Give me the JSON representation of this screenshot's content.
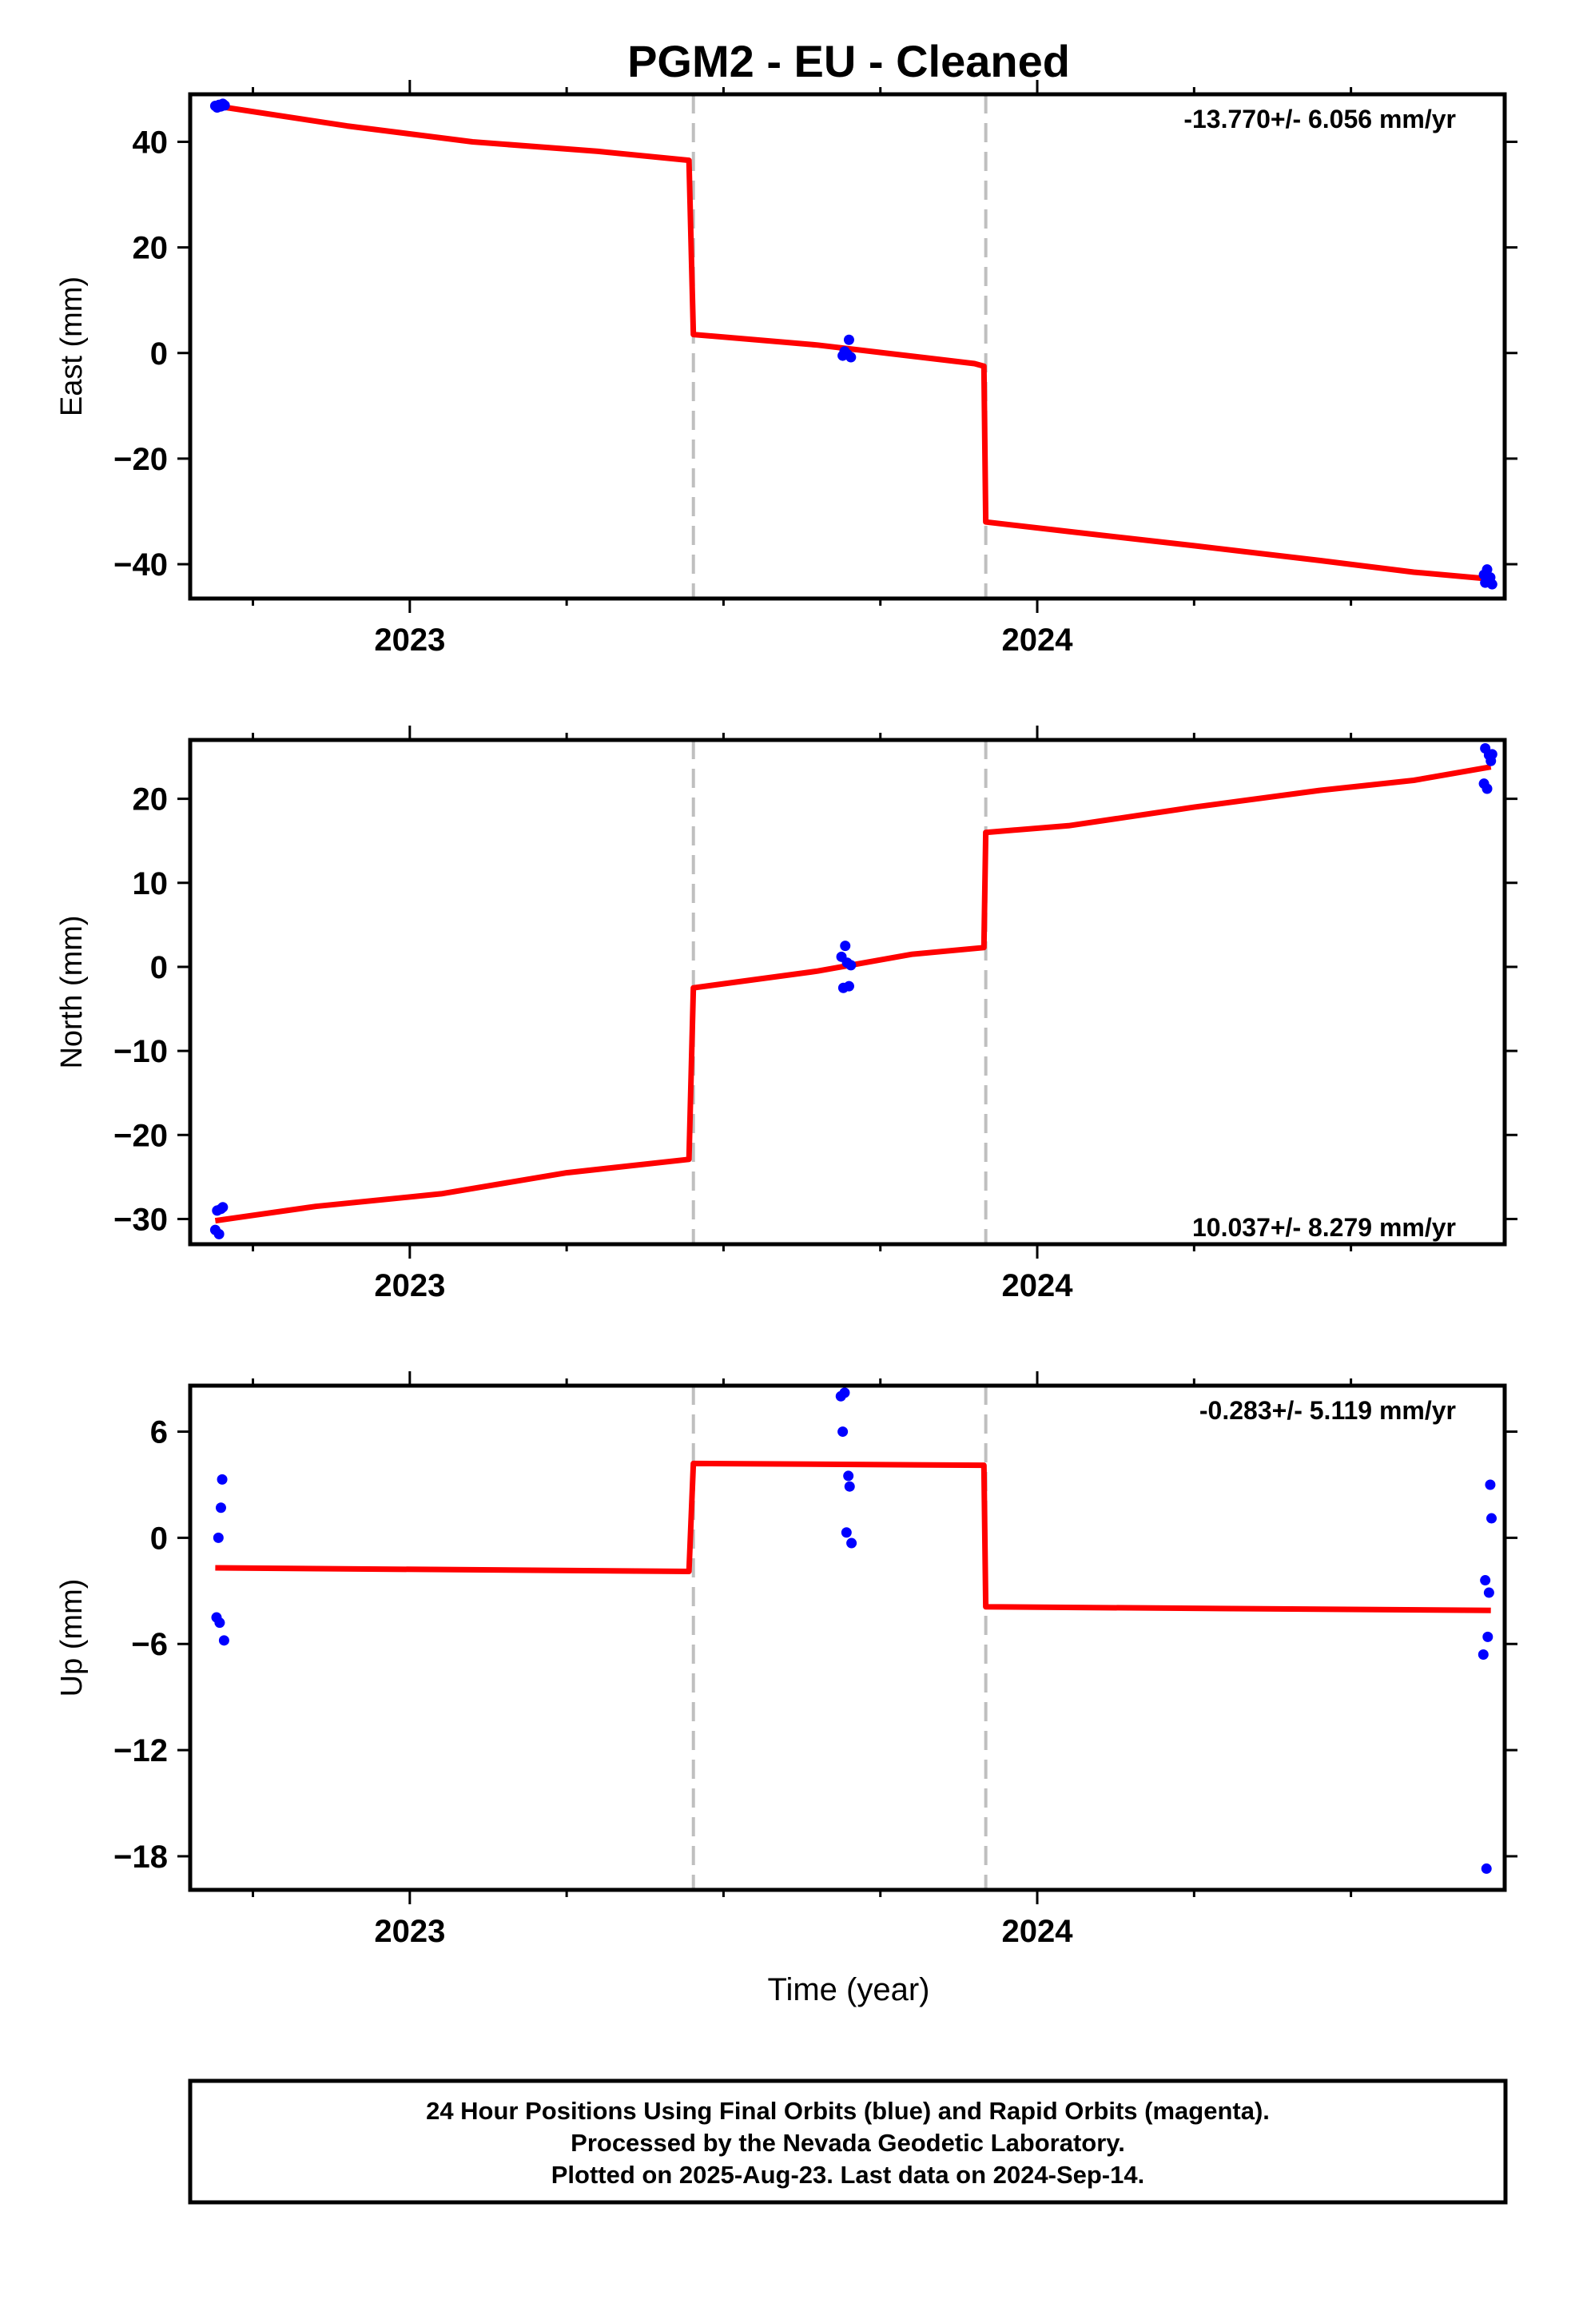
{
  "chart_data": {
    "title": "PGM2  - EU - Cleaned",
    "xlabel": "Time (year)",
    "xlim": [
      2022.65,
      2024.745
    ],
    "x_ticks": [
      2023,
      2024
    ],
    "x_minor_ticks": [
      2022.75,
      2023.25,
      2023.5,
      2023.75,
      2024.25,
      2024.5
    ],
    "break_lines": [
      2023.452,
      2023.918
    ],
    "colors": {
      "data": "#0000ff",
      "model": "#ff0000",
      "breaks": "#bfbfbf",
      "frame": "#000000"
    },
    "panels": [
      {
        "type": "scatter",
        "ylabel": "East (mm)",
        "ylim": [
          -46.5,
          49
        ],
        "y_ticks": [
          40,
          20,
          0,
          -20,
          -40
        ],
        "y_tick_labels": [
          "40",
          "20",
          "0",
          "−20",
          "−40"
        ],
        "rate_label": "-13.770+/- 6.056 mm/yr",
        "rate_position": "top-right",
        "points": [
          [
            2022.69,
            46.8
          ],
          [
            2022.693,
            46.5
          ],
          [
            2022.696,
            47.0
          ],
          [
            2022.699,
            46.7
          ],
          [
            2022.702,
            47.2
          ],
          [
            2022.705,
            46.9
          ],
          [
            2023.69,
            -0.5
          ],
          [
            2023.693,
            0.3
          ],
          [
            2023.697,
            -0.2
          ],
          [
            2023.7,
            2.5
          ],
          [
            2023.703,
            -0.8
          ],
          [
            2024.712,
            -42.0
          ],
          [
            2024.714,
            -43.5
          ],
          [
            2024.717,
            -41.0
          ],
          [
            2024.72,
            -43.0
          ],
          [
            2024.722,
            -42.5
          ],
          [
            2024.725,
            -43.8
          ]
        ],
        "model": [
          [
            2022.69,
            46.8
          ],
          [
            2022.9,
            43.0
          ],
          [
            2023.1,
            40.0
          ],
          [
            2023.3,
            38.2
          ],
          [
            2023.445,
            36.5
          ],
          [
            2023.452,
            3.5
          ],
          [
            2023.65,
            1.5
          ],
          [
            2023.9,
            -2.0
          ],
          [
            2023.915,
            -2.5
          ],
          [
            2023.918,
            -32.0
          ],
          [
            2024.05,
            -33.8
          ],
          [
            2024.25,
            -36.5
          ],
          [
            2024.45,
            -39.3
          ],
          [
            2024.6,
            -41.5
          ],
          [
            2024.723,
            -42.8
          ]
        ]
      },
      {
        "type": "scatter",
        "ylabel": "North (mm)",
        "ylim": [
          -33,
          27
        ],
        "y_ticks": [
          20,
          10,
          0,
          -10,
          -20,
          -30
        ],
        "y_tick_labels": [
          "20",
          "10",
          "0",
          "−10",
          "−20",
          "−30"
        ],
        "rate_label": "10.037+/- 8.279 mm/yr",
        "rate_position": "bottom-right",
        "points": [
          [
            2022.69,
            -31.3
          ],
          [
            2022.693,
            -29.0
          ],
          [
            2022.696,
            -31.8
          ],
          [
            2022.699,
            -28.8
          ],
          [
            2022.702,
            -28.6
          ],
          [
            2023.688,
            1.2
          ],
          [
            2023.691,
            -2.5
          ],
          [
            2023.694,
            2.5
          ],
          [
            2023.697,
            0.5
          ],
          [
            2023.7,
            -2.3
          ],
          [
            2023.703,
            0.2
          ],
          [
            2024.712,
            21.8
          ],
          [
            2024.714,
            26.0
          ],
          [
            2024.717,
            21.2
          ],
          [
            2024.72,
            25.2
          ],
          [
            2024.723,
            24.5
          ],
          [
            2024.725,
            25.3
          ]
        ],
        "model": [
          [
            2022.69,
            -30.2
          ],
          [
            2022.85,
            -28.5
          ],
          [
            2023.05,
            -27.0
          ],
          [
            2023.25,
            -24.5
          ],
          [
            2023.445,
            -22.9
          ],
          [
            2023.452,
            -2.5
          ],
          [
            2023.65,
            -0.5
          ],
          [
            2023.8,
            1.5
          ],
          [
            2023.915,
            2.3
          ],
          [
            2023.918,
            16.0
          ],
          [
            2024.05,
            16.8
          ],
          [
            2024.25,
            19.0
          ],
          [
            2024.45,
            21.0
          ],
          [
            2024.6,
            22.2
          ],
          [
            2024.723,
            23.8
          ]
        ]
      },
      {
        "type": "scatter",
        "ylabel": "Up (mm)",
        "ylim": [
          -19.9,
          8.6
        ],
        "y_ticks": [
          6,
          0,
          -6,
          -12,
          -18
        ],
        "y_tick_labels": [
          "6",
          "0",
          "−6",
          "−12",
          "−18"
        ],
        "rate_label": "-0.283+/- 5.119 mm/yr",
        "rate_position": "top-right",
        "points": [
          [
            2022.692,
            -4.5
          ],
          [
            2022.695,
            0.0
          ],
          [
            2022.697,
            -4.8
          ],
          [
            2022.699,
            1.7
          ],
          [
            2022.701,
            3.3
          ],
          [
            2022.704,
            -5.8
          ],
          [
            2023.687,
            8.0
          ],
          [
            2023.69,
            6.0
          ],
          [
            2023.693,
            8.2
          ],
          [
            2023.696,
            0.3
          ],
          [
            2023.699,
            3.5
          ],
          [
            2023.701,
            2.9
          ],
          [
            2023.704,
            -0.3
          ],
          [
            2024.711,
            -6.6
          ],
          [
            2024.714,
            -2.4
          ],
          [
            2024.716,
            -18.7
          ],
          [
            2024.718,
            -5.6
          ],
          [
            2024.72,
            -3.1
          ],
          [
            2024.722,
            3.0
          ],
          [
            2024.724,
            1.1
          ]
        ],
        "model": [
          [
            2022.69,
            -1.7
          ],
          [
            2023.445,
            -1.9
          ],
          [
            2023.452,
            4.2
          ],
          [
            2023.915,
            4.1
          ],
          [
            2023.918,
            -3.9
          ],
          [
            2024.723,
            -4.1
          ]
        ]
      }
    ]
  },
  "footer": {
    "line1": "24 Hour Positions Using Final Orbits (blue) and Rapid Orbits (magenta).",
    "line2": "Processed by the Nevada Geodetic Laboratory.",
    "line3": "Plotted on 2025-Aug-23. Last data on 2024-Sep-14."
  }
}
